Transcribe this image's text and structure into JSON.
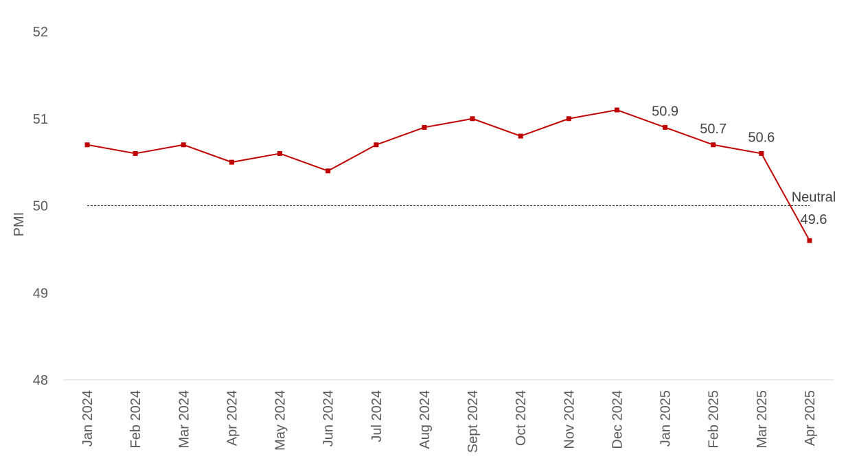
{
  "chart_data": {
    "type": "line",
    "title": "",
    "xlabel": "",
    "ylabel": "PMI",
    "ylim": [
      48,
      52
    ],
    "yticks": [
      48,
      49,
      50,
      51,
      52
    ],
    "categories": [
      "Jan 2024",
      "Feb 2024",
      "Mar 2024",
      "Apr 2024",
      "May 2024",
      "Jun 2024",
      "Jul 2024",
      "Aug 2024",
      "Sept 2024",
      "Oct 2024",
      "Nov 2024",
      "Dec 2024",
      "Jan 2025",
      "Feb 2025",
      "Mar 2025",
      "Apr 2025"
    ],
    "series": [
      {
        "values": [
          50.7,
          50.6,
          50.7,
          50.5,
          50.6,
          50.4,
          50.7,
          50.9,
          51.0,
          50.8,
          51.0,
          51.1,
          50.9,
          50.7,
          50.6,
          49.6
        ],
        "color": "#C00000",
        "marker": "square"
      }
    ],
    "data_labels": [
      {
        "category": "Jan 2025",
        "text": "50.9"
      },
      {
        "category": "Feb 2025",
        "text": "50.7"
      },
      {
        "category": "Mar 2025",
        "text": "50.6"
      },
      {
        "category": "Apr 2025",
        "text": "49.6"
      }
    ],
    "reference_line": {
      "value": 50,
      "label": "Neutral",
      "style": "dashed",
      "color": "#000000"
    },
    "grid": false,
    "legend": "none",
    "axis_line_color": "#D9D9D9"
  }
}
